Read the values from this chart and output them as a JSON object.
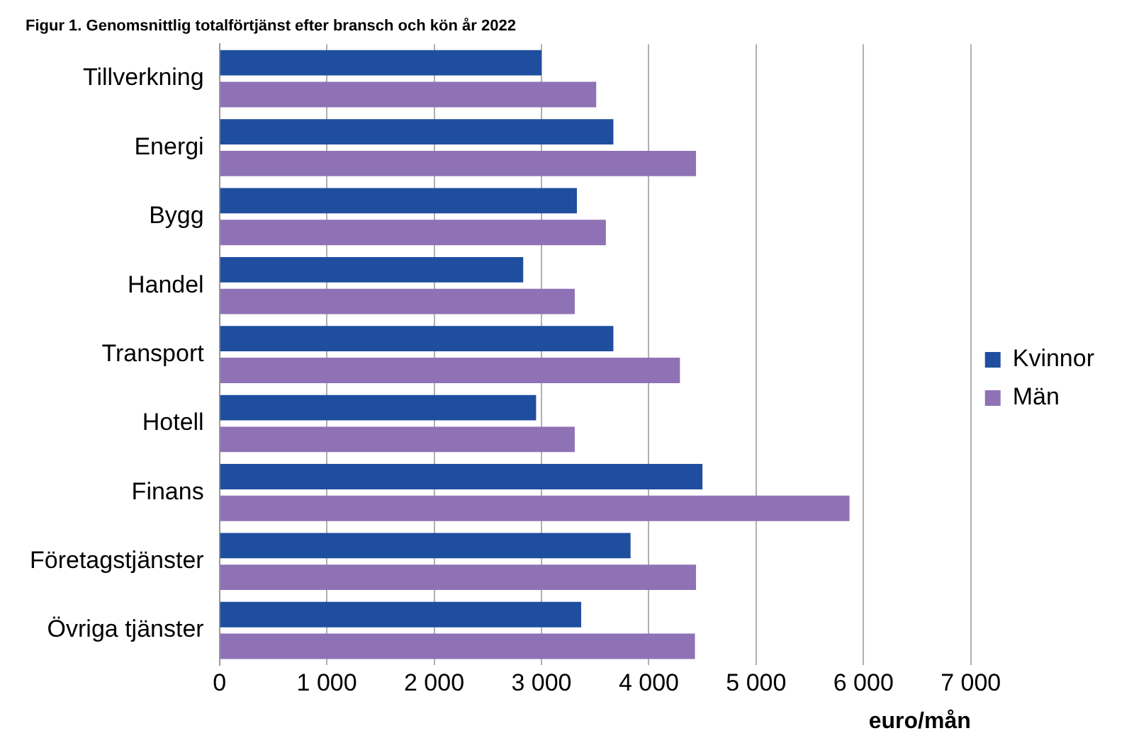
{
  "chart_data": {
    "type": "bar",
    "orientation": "horizontal",
    "title": "Figur 1. Genomsnittlig totalförtjänst efter bransch och kön år 2022",
    "xlabel": "euro/mån",
    "categories": [
      "Tillverkning",
      "Energi",
      "Bygg",
      "Handel",
      "Transport",
      "Hotell",
      "Finans",
      "Företagstjänster",
      "Övriga tjänster"
    ],
    "series": [
      {
        "name": "Kvinnor",
        "color": "#1f4e9f",
        "values": [
          3000,
          3670,
          3330,
          2830,
          3670,
          2950,
          4500,
          3830,
          3370
        ]
      },
      {
        "name": "Män",
        "color": "#8e72b5",
        "values": [
          3510,
          4440,
          3600,
          3310,
          4290,
          3310,
          5870,
          4440,
          4430
        ]
      }
    ],
    "xlim": [
      0,
      7000
    ],
    "xticks": [
      {
        "value": 0,
        "label": "0"
      },
      {
        "value": 1000,
        "label": "1 000"
      },
      {
        "value": 2000,
        "label": "2 000"
      },
      {
        "value": 3000,
        "label": "3 000"
      },
      {
        "value": 4000,
        "label": "4 000"
      },
      {
        "value": 5000,
        "label": "5 000"
      },
      {
        "value": 6000,
        "label": "6 000"
      },
      {
        "value": 7000,
        "label": "7 000"
      }
    ],
    "grid": "x",
    "legend": "right"
  }
}
